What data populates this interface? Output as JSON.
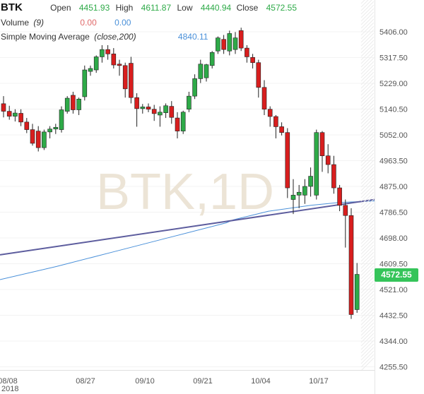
{
  "header": {
    "symbol": "BTK",
    "open_label": "Open",
    "open": "4451.93",
    "high_label": "High",
    "high": "4611.87",
    "low_label": "Low",
    "low": "4440.94",
    "close_label": "Close",
    "close": "4572.55",
    "volume_label": "Volume",
    "volume_param": "(9)",
    "volume_value_1": "0.00",
    "volume_value_2": "0.00",
    "sma_label": "Simple Moving Average",
    "sma_param": "(close,200)",
    "sma_value": "4840.11"
  },
  "watermark": "BTK,1D",
  "last_price_tag": "4572.55",
  "colors": {
    "up": "#2eaa48",
    "down": "#d81e1e",
    "sma": "#4a90d9",
    "trendline": "#5d5d9e",
    "watermark": "#ece4d6",
    "tag": "#35c45a"
  },
  "chart_data": {
    "type": "candlestick",
    "y_ticks": [
      "5406.00",
      "5317.50",
      "5229.00",
      "5140.50",
      "5052.00",
      "4963.50",
      "4875.00",
      "4786.50",
      "4698.00",
      "4609.50",
      "4521.00",
      "4432.50",
      "4344.00",
      "4255.50"
    ],
    "ylim": [
      4220,
      5500
    ],
    "x_ticks": [
      "08/08",
      "08/27",
      "09/10",
      "09/21",
      "10/04",
      "10/17"
    ],
    "x_year": "2018",
    "candles": [
      [
        5159,
        5185,
        5112,
        5133
      ],
      [
        5133,
        5152,
        5104,
        5116
      ],
      [
        5116,
        5140,
        5098,
        5127
      ],
      [
        5126,
        5140,
        5082,
        5096
      ],
      [
        5096,
        5110,
        5058,
        5070
      ],
      [
        5070,
        5090,
        5015,
        5023
      ],
      [
        5065,
        5082,
        4995,
        5008
      ],
      [
        5008,
        5070,
        5000,
        5062
      ],
      [
        5062,
        5082,
        5040,
        5072
      ],
      [
        5072,
        5090,
        5055,
        5078
      ],
      [
        5070,
        5150,
        5060,
        5138
      ],
      [
        5133,
        5185,
        5125,
        5178
      ],
      [
        5188,
        5200,
        5125,
        5138
      ],
      [
        5138,
        5180,
        5120,
        5175
      ],
      [
        5183,
        5290,
        5170,
        5275
      ],
      [
        5270,
        5290,
        5255,
        5280
      ],
      [
        5275,
        5325,
        5265,
        5320
      ],
      [
        5320,
        5360,
        5300,
        5345
      ],
      [
        5345,
        5360,
        5310,
        5330
      ],
      [
        5330,
        5350,
        5280,
        5292
      ],
      [
        5295,
        5310,
        5255,
        5290
      ],
      [
        5290,
        5300,
        5180,
        5210
      ],
      [
        5298,
        5320,
        5160,
        5180
      ],
      [
        5180,
        5195,
        5080,
        5142
      ],
      [
        5142,
        5158,
        5125,
        5148
      ],
      [
        5148,
        5160,
        5130,
        5140
      ],
      [
        5140,
        5155,
        5100,
        5125
      ],
      [
        5120,
        5150,
        5080,
        5130
      ],
      [
        5128,
        5160,
        5110,
        5152
      ],
      [
        5150,
        5168,
        5090,
        5112
      ],
      [
        5110,
        5130,
        5040,
        5065
      ],
      [
        5065,
        5135,
        5055,
        5130
      ],
      [
        5140,
        5200,
        5130,
        5185
      ],
      [
        5185,
        5260,
        5175,
        5245
      ],
      [
        5245,
        5310,
        5230,
        5295
      ],
      [
        5248,
        5296,
        5235,
        5293
      ],
      [
        5290,
        5340,
        5280,
        5335
      ],
      [
        5340,
        5390,
        5330,
        5385
      ],
      [
        5380,
        5395,
        5330,
        5345
      ],
      [
        5340,
        5410,
        5325,
        5400
      ],
      [
        5345,
        5405,
        5330,
        5385
      ],
      [
        5410,
        5420,
        5340,
        5350
      ],
      [
        5350,
        5360,
        5300,
        5320
      ],
      [
        5318,
        5330,
        5280,
        5300
      ],
      [
        5300,
        5310,
        5180,
        5215
      ],
      [
        5215,
        5240,
        5120,
        5140
      ],
      [
        5140,
        5150,
        5080,
        5115
      ],
      [
        5115,
        5120,
        5040,
        5080
      ],
      [
        5080,
        5095,
        5050,
        5060
      ],
      [
        5060,
        5075,
        4835,
        4870
      ],
      [
        4830,
        4900,
        4780,
        4845
      ],
      [
        4845,
        4880,
        4800,
        4855
      ],
      [
        4845,
        4900,
        4815,
        4875
      ],
      [
        4875,
        4940,
        4840,
        4910
      ],
      [
        4845,
        5070,
        4830,
        5060
      ],
      [
        5060,
        5065,
        4925,
        4980
      ],
      [
        4980,
        5020,
        4920,
        4950
      ],
      [
        4950,
        4980,
        4850,
        4870
      ],
      [
        4870,
        4880,
        4790,
        4810
      ],
      [
        4810,
        4830,
        4665,
        4775
      ],
      [
        4775,
        4800,
        4420,
        4435
      ],
      [
        4452,
        4612,
        4441,
        4573
      ]
    ],
    "sma": [
      [
        0,
        4555
      ],
      [
        80,
        4600
      ],
      [
        160,
        4650
      ],
      [
        240,
        4700
      ],
      [
        320,
        4750
      ],
      [
        330,
        4760
      ],
      [
        380,
        4790
      ],
      [
        440,
        4810
      ],
      [
        480,
        4820
      ],
      [
        530,
        4825
      ]
    ],
    "trendline": [
      [
        0,
        4640
      ],
      [
        530,
        4830
      ]
    ]
  }
}
